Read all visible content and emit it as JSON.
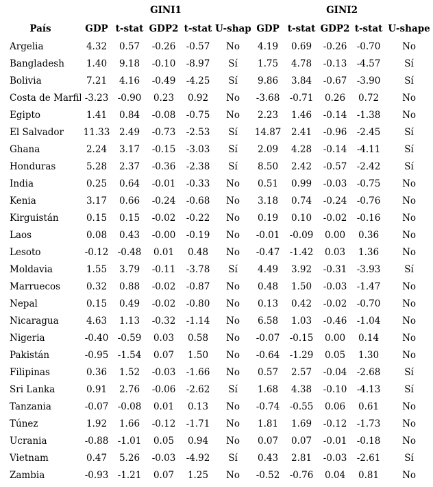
{
  "table": {
    "groups": {
      "gini1": "GINI1",
      "gini2": "GINI2"
    },
    "columns": {
      "country": "País",
      "gdp_1": "GDP",
      "tstat_1a": "t-stat",
      "gdp2_1": "GDP2",
      "tstat_1b": "t-stat",
      "ushape_1": "U-shape",
      "gdp_2": "GDP",
      "tstat_2a": "t-stat",
      "gdp2_2": "GDP2",
      "tstat_2b": "t-stat",
      "ushape_2": "U-shape"
    },
    "rows": [
      [
        "Argelia",
        "4.32",
        "0.57",
        "-0.26",
        "-0.57",
        "No",
        "4.19",
        "0.69",
        "-0.26",
        "-0.70",
        "No"
      ],
      [
        "Bangladesh",
        "1.40",
        "9.18",
        "-0.10",
        "-8.97",
        "Sí",
        "1.75",
        "4.78",
        "-0.13",
        "-4.57",
        "Sí"
      ],
      [
        "Bolivia",
        "7.21",
        "4.16",
        "-0.49",
        "-4.25",
        "Sí",
        "9.86",
        "3.84",
        "-0.67",
        "-3.90",
        "Sí"
      ],
      [
        "Costa de Marfil",
        "-3.23",
        "-0.90",
        "0.23",
        "0.92",
        "No",
        "-3.68",
        "-0.71",
        "0.26",
        "0.72",
        "No"
      ],
      [
        "Egipto",
        "1.41",
        "0.84",
        "-0.08",
        "-0.75",
        "No",
        "2.23",
        "1.46",
        "-0.14",
        "-1.38",
        "No"
      ],
      [
        "El Salvador",
        "11.33",
        "2.49",
        "-0.73",
        "-2.53",
        "Sí",
        "14.87",
        "2.41",
        "-0.96",
        "-2.45",
        "Sí"
      ],
      [
        "Ghana",
        "2.24",
        "3.17",
        "-0.15",
        "-3.03",
        "Sí",
        "2.09",
        "4.28",
        "-0.14",
        "-4.11",
        "Sí"
      ],
      [
        "Honduras",
        "5.28",
        "2.37",
        "-0.36",
        "-2.38",
        "Sí",
        "8.50",
        "2.42",
        "-0.57",
        "-2.42",
        "Sí"
      ],
      [
        "India",
        "0.25",
        "0.64",
        "-0.01",
        "-0.33",
        "No",
        "0.51",
        "0.99",
        "-0.03",
        "-0.75",
        "No"
      ],
      [
        "Kenia",
        "3.17",
        "0.66",
        "-0.24",
        "-0.68",
        "No",
        "3.18",
        "0.74",
        "-0.24",
        "-0.76",
        "No"
      ],
      [
        "Kirguistán",
        "0.15",
        "0.15",
        "-0.02",
        "-0.22",
        "No",
        "0.19",
        "0.10",
        "-0.02",
        "-0.16",
        "No"
      ],
      [
        "Laos",
        "0.08",
        "0.43",
        "-0.00",
        "-0.19",
        "No",
        "-0.01",
        "-0.09",
        "0.00",
        "0.36",
        "No"
      ],
      [
        "Lesoto",
        "-0.12",
        "-0.48",
        "0.01",
        "0.48",
        "No",
        "-0.47",
        "-1.42",
        "0.03",
        "1.36",
        "No"
      ],
      [
        "Moldavia",
        "1.55",
        "3.79",
        "-0.11",
        "-3.78",
        "Sí",
        "4.49",
        "3.92",
        "-0.31",
        "-3.93",
        "Sí"
      ],
      [
        "Marruecos",
        "0.32",
        "0.88",
        "-0.02",
        "-0.87",
        "No",
        "0.48",
        "1.50",
        "-0.03",
        "-1.47",
        "No"
      ],
      [
        "Nepal",
        "0.15",
        "0.49",
        "-0.02",
        "-0.80",
        "No",
        "0.13",
        "0.42",
        "-0.02",
        "-0.70",
        "No"
      ],
      [
        "Nicaragua",
        "4.63",
        "1.13",
        "-0.32",
        "-1.14",
        "No",
        "6.58",
        "1.03",
        "-0.46",
        "-1.04",
        "No"
      ],
      [
        "Nigeria",
        "-0.40",
        "-0.59",
        "0.03",
        "0.58",
        "No",
        "-0.07",
        "-0.15",
        "0.00",
        "0.14",
        "No"
      ],
      [
        "Pakistán",
        "-0.95",
        "-1.54",
        "0.07",
        "1.50",
        "No",
        "-0.64",
        "-1.29",
        "0.05",
        "1.30",
        "No"
      ],
      [
        "Filipinas",
        "0.36",
        "1.52",
        "-0.03",
        "-1.66",
        "No",
        "0.57",
        "2.57",
        "-0.04",
        "-2.68",
        "Sí"
      ],
      [
        "Sri Lanka",
        "0.91",
        "2.76",
        "-0.06",
        "-2.62",
        "Sí",
        "1.68",
        "4.38",
        "-0.10",
        "-4.13",
        "Sí"
      ],
      [
        "Tanzania",
        "-0.07",
        "-0.08",
        "0.01",
        "0.13",
        "No",
        "-0.74",
        "-0.55",
        "0.06",
        "0.61",
        "No"
      ],
      [
        "Túnez",
        "1.92",
        "1.66",
        "-0.12",
        "-1.71",
        "No",
        "1.81",
        "1.69",
        "-0.12",
        "-1.73",
        "No"
      ],
      [
        "Ucrania",
        "-0.88",
        "-1.01",
        "0.05",
        "0.94",
        "No",
        "0.07",
        "0.07",
        "-0.01",
        "-0.18",
        "No"
      ],
      [
        "Vietnam",
        "0.47",
        "5.26",
        "-0.03",
        "-4.92",
        "Sí",
        "0.43",
        "2.81",
        "-0.03",
        "-2.61",
        "Sí"
      ],
      [
        "Zambia",
        "-0.93",
        "-1.21",
        "0.07",
        "1.25",
        "No",
        "-0.52",
        "-0.76",
        "0.04",
        "0.81",
        "No"
      ]
    ]
  }
}
